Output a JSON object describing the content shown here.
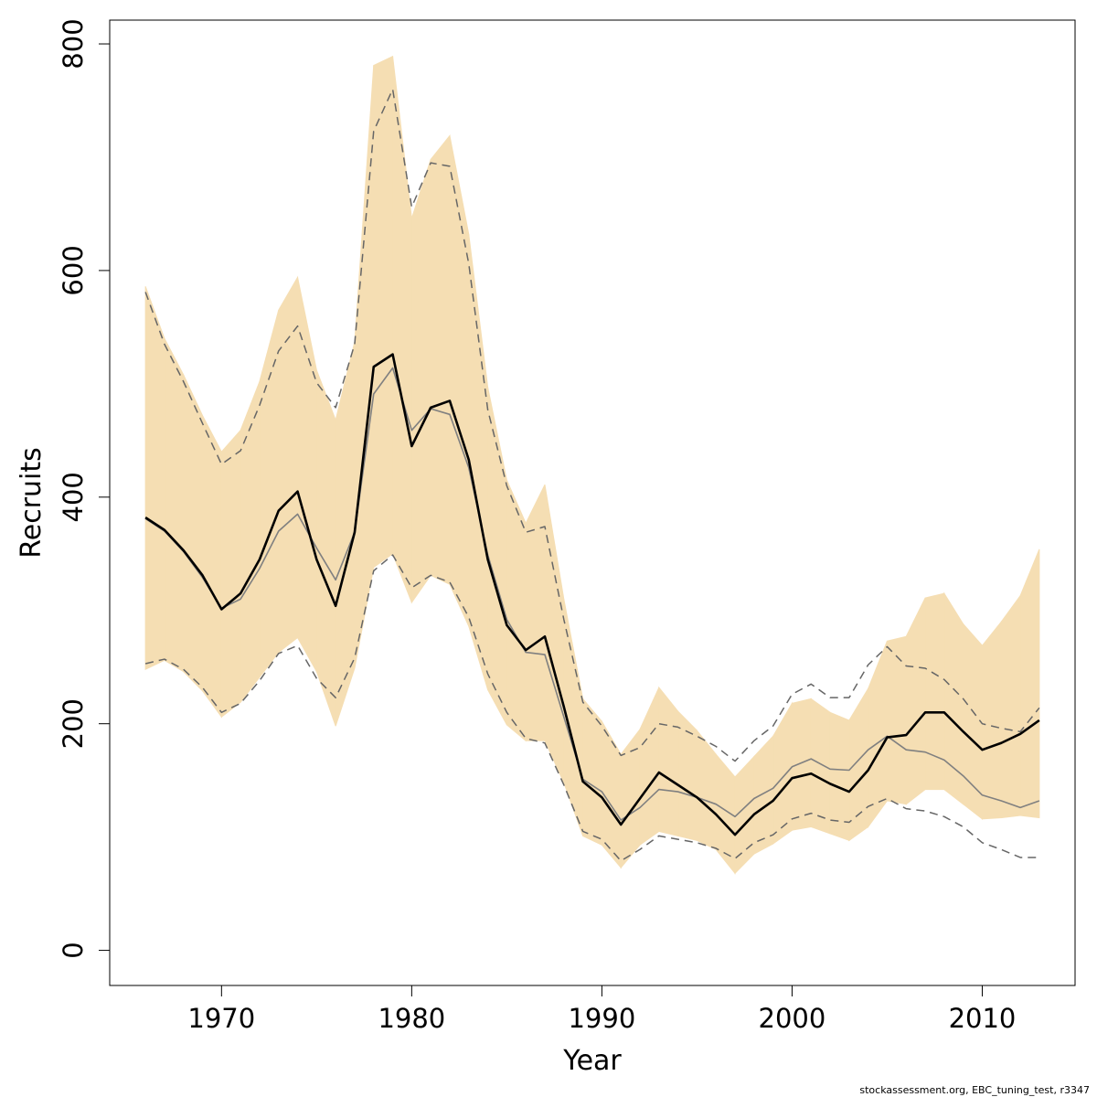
{
  "chart_data": {
    "type": "line",
    "x_label": "Year",
    "y_label": "Recruits",
    "footnote": "stockassessment.org, EBC_tuning_test, r3347",
    "x": [
      1966,
      1967,
      1968,
      1969,
      1970,
      1971,
      1972,
      1973,
      1974,
      1975,
      1976,
      1977,
      1978,
      1979,
      1980,
      1981,
      1982,
      1983,
      1984,
      1985,
      1986,
      1987,
      1988,
      1989,
      1990,
      1991,
      1992,
      1993,
      1994,
      1995,
      1996,
      1997,
      1998,
      1999,
      2000,
      2001,
      2002,
      2003,
      2004,
      2005,
      2006,
      2007,
      2008,
      2009,
      2010,
      2011,
      2012,
      2013
    ],
    "xlim": [
      1964.12,
      2014.88
    ],
    "xticks": [
      1970,
      1980,
      1990,
      2000,
      2010
    ],
    "ylim": [
      -31,
      821
    ],
    "yticks": [
      0,
      200,
      400,
      600,
      800
    ],
    "band": {
      "color": "#f5deb3",
      "upper": [
        586,
        540,
        508,
        472,
        440,
        459,
        502,
        565,
        594,
        512,
        468,
        537,
        781,
        789,
        646,
        698,
        719,
        632,
        497,
        415,
        377,
        411,
        310,
        222,
        202,
        173,
        195,
        232,
        211,
        194,
        173,
        153,
        171,
        189,
        218,
        222,
        210,
        203,
        231,
        273,
        277,
        311,
        315,
        288,
        269,
        290,
        313,
        354
      ],
      "lower": [
        248,
        256,
        246,
        229,
        206,
        219,
        241,
        263,
        276,
        246,
        198,
        249,
        338,
        350,
        307,
        331,
        323,
        286,
        230,
        199,
        185,
        185,
        148,
        101,
        93,
        73,
        93,
        105,
        101,
        97,
        89,
        68,
        85,
        94,
        106,
        109,
        103,
        97,
        109,
        132,
        129,
        142,
        142,
        129,
        116,
        117,
        119,
        117
      ]
    },
    "series": [
      {
        "color": "#666666",
        "width": 1.5,
        "dash": true,
        "values": [
          581,
          535,
          502,
          465,
          429,
          441,
          481,
          529,
          551,
          501,
          479,
          535,
          723,
          760,
          656,
          695,
          692,
          606,
          477,
          410,
          369,
          374,
          292,
          219,
          198,
          172,
          179,
          200,
          197,
          189,
          180,
          167,
          185,
          198,
          226,
          235,
          223,
          223,
          252,
          268,
          251,
          249,
          239,
          222,
          200,
          196,
          193,
          214
        ]
      },
      {
        "color": "#666666",
        "width": 1.5,
        "dash": true,
        "values": [
          253,
          257,
          248,
          232,
          210,
          218,
          238,
          262,
          269,
          240,
          223,
          258,
          335,
          349,
          320,
          331,
          325,
          294,
          244,
          210,
          187,
          183,
          146,
          105,
          98,
          79,
          89,
          101,
          98,
          95,
          90,
          81,
          95,
          102,
          116,
          121,
          115,
          113,
          127,
          134,
          125,
          123,
          118,
          109,
          95,
          89,
          82,
          82
        ]
      },
      {
        "color": "#808080",
        "width": 1.6,
        "dash": false,
        "values": [
          381,
          370,
          352,
          329,
          302,
          310,
          337,
          370,
          385,
          355,
          327,
          369,
          491,
          514,
          459,
          478,
          473,
          426,
          349,
          292,
          263,
          261,
          206,
          151,
          140,
          115,
          126,
          142,
          140,
          135,
          129,
          118,
          134,
          143,
          162,
          169,
          160,
          159,
          177,
          189,
          177,
          175,
          168,
          154,
          137,
          132,
          126,
          132
        ]
      },
      {
        "color": "#000000",
        "width": 2.6,
        "dash": false,
        "values": [
          382,
          371,
          353,
          331,
          301,
          315,
          345,
          388,
          405,
          345,
          304,
          369,
          515,
          526,
          445,
          479,
          485,
          433,
          345,
          287,
          265,
          277,
          215,
          149,
          135,
          111,
          134,
          157,
          146,
          135,
          120,
          102,
          120,
          132,
          152,
          156,
          147,
          140,
          159,
          188,
          190,
          210,
          210,
          193,
          177,
          183,
          191,
          203
        ]
      }
    ]
  }
}
